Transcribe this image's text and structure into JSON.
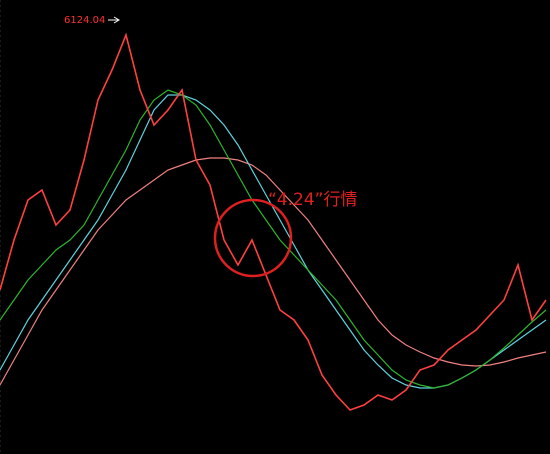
{
  "chart_data": {
    "type": "line",
    "categories": [
      null,
      null,
      null,
      null,
      null,
      null,
      null,
      null,
      null,
      null,
      null,
      null,
      null,
      null,
      null,
      null,
      null,
      null,
      null,
      null,
      null,
      null,
      null,
      null,
      null,
      null,
      null,
      null,
      null,
      null,
      null,
      null,
      null,
      null,
      null,
      null,
      null,
      null,
      null,
      null
    ],
    "ylim": [
      1205,
      6535
    ],
    "series": [
      {
        "color": "#f08080",
        "values": [
          2015,
          2309,
          2602,
          2896,
          3130,
          3365,
          3600,
          3835,
          4011,
          4187,
          4304,
          4422,
          4539,
          4598,
          4657,
          4680,
          4680,
          4657,
          4598,
          4480,
          4304,
          4128,
          3952,
          3717,
          3483,
          3248,
          3013,
          2778,
          2602,
          2485,
          2402,
          2332,
          2285,
          2250,
          2238,
          2250,
          2285,
          2332,
          2367,
          2402
        ]
      },
      {
        "color": "#5fd3e0",
        "values": [
          2191,
          2485,
          2778,
          3013,
          3248,
          3483,
          3717,
          3952,
          4246,
          4539,
          4891,
          5244,
          5420,
          5420,
          5361,
          5244,
          5068,
          4833,
          4539,
          4246,
          3952,
          3659,
          3365,
          3130,
          2896,
          2661,
          2426,
          2250,
          2097,
          2015,
          1980,
          1980,
          2015,
          2097,
          2191,
          2309,
          2426,
          2543,
          2661,
          2778
        ]
      },
      {
        "color": "#2db52d",
        "values": [
          2778,
          3013,
          3248,
          3424,
          3600,
          3717,
          3894,
          4187,
          4480,
          4774,
          5126,
          5361,
          5478,
          5420,
          5302,
          5068,
          4774,
          4480,
          4187,
          3952,
          3717,
          3541,
          3365,
          3189,
          3013,
          2778,
          2543,
          2367,
          2191,
          2074,
          2015,
          1980,
          2015,
          2097,
          2191,
          2309,
          2450,
          2602,
          2755,
          2896
        ]
      },
      {
        "color": "#ff4040",
        "values": [
          3130,
          3717,
          4187,
          4304,
          3894,
          4070,
          4657,
          5361,
          5713,
          6124,
          5478,
          5068,
          5244,
          5478,
          4657,
          4363,
          3717,
          3424,
          3717,
          3307,
          2896,
          2778,
          2543,
          2133,
          1898,
          1722,
          1780,
          1898,
          1839,
          1956,
          2191,
          2250,
          2426,
          2543,
          2661,
          2837,
          3013,
          3424,
          2778,
          3013
        ]
      }
    ],
    "annotations": [
      {
        "text": "6124.04",
        "color": "#ff3030"
      },
      {
        "text": "“4.24”行情",
        "color": "#e02020"
      }
    ]
  }
}
